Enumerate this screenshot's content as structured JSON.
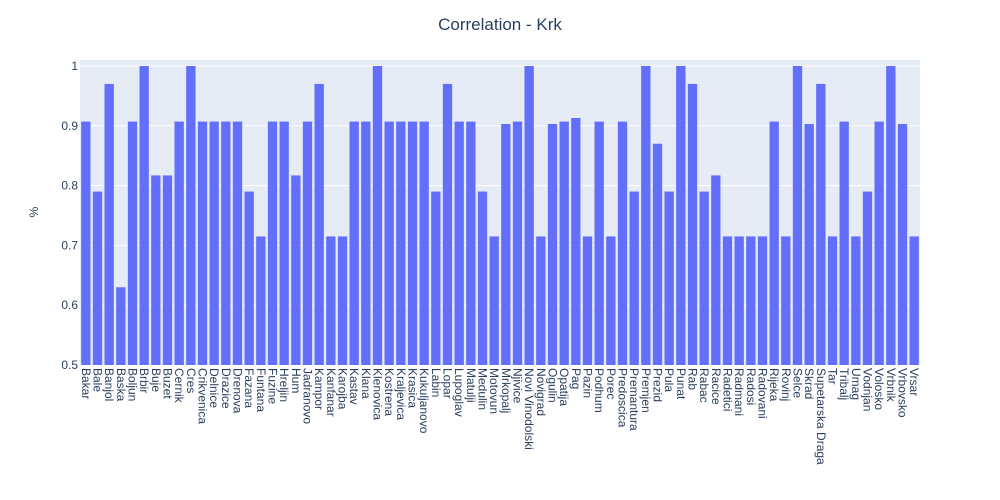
{
  "chart_data": {
    "type": "bar",
    "title": "Correlation - Krk",
    "y_label": "%",
    "categories": [
      "Bakar",
      "Bale",
      "Banjol",
      "Baska",
      "Boljun",
      "Brbir",
      "Buje",
      "Buzet",
      "Cernik",
      "Cres",
      "Crikvenica",
      "Delnice",
      "Drazice",
      "Drenova",
      "Fazana",
      "Funtana",
      "Fuzine",
      "Hreljin",
      "Hum",
      "Jadranovo",
      "Kampor",
      "Kanfanar",
      "Karojba",
      "Kastav",
      "Klana",
      "Klenovica",
      "Kostrena",
      "Kraljevica",
      "Krasica",
      "Kukuljanovo",
      "Labin",
      "Lopar",
      "Lupoglav",
      "Matulji",
      "Medulin",
      "Motovun",
      "Mrkopalj",
      "Njivice",
      "Novi Vinodolski",
      "Novigrad",
      "Ogulin",
      "Opatija",
      "Pag",
      "Pazin",
      "Podhum",
      "Porec",
      "Predoscica",
      "Premantura",
      "Premjen",
      "Prezid",
      "Pula",
      "Punat",
      "Rab",
      "Rabac",
      "Racice",
      "Radetici",
      "Radmani",
      "Radosi",
      "Radovani",
      "Rijeka",
      "Rovinj",
      "Selce",
      "Skrad",
      "Supetarska Draga",
      "Tar",
      "Tribalj",
      "Umag",
      "Vodnjan",
      "Volosko",
      "Vrbnik",
      "Vrbovsko",
      "Vrsar"
    ],
    "values": [
      0.907,
      0.79,
      0.97,
      0.63,
      0.907,
      1,
      0.817,
      0.817,
      0.907,
      1,
      0.907,
      0.907,
      0.907,
      0.907,
      0.79,
      0.715,
      0.907,
      0.907,
      0.817,
      0.907,
      0.97,
      0.715,
      0.715,
      0.907,
      0.907,
      1,
      0.907,
      0.907,
      0.907,
      0.907,
      0.79,
      0.97,
      0.907,
      0.907,
      0.79,
      0.715,
      0.903,
      0.907,
      1,
      0.715,
      0.903,
      0.907,
      0.913,
      0.715,
      0.907,
      0.715,
      0.907,
      0.79,
      1,
      0.87,
      0.79,
      1,
      0.97,
      0.79,
      0.817,
      0.715,
      0.715,
      0.715,
      0.715,
      0.907,
      0.715,
      1,
      0.903,
      0.97,
      0.715,
      0.907,
      0.715,
      0.79,
      0.907,
      1,
      0.903,
      0.715
    ],
    "color": "#636efa",
    "ylim": [
      0.5,
      1.01
    ],
    "yticks": [
      0.5,
      0.6,
      0.7,
      0.8,
      0.9,
      1
    ],
    "grid": true
  }
}
